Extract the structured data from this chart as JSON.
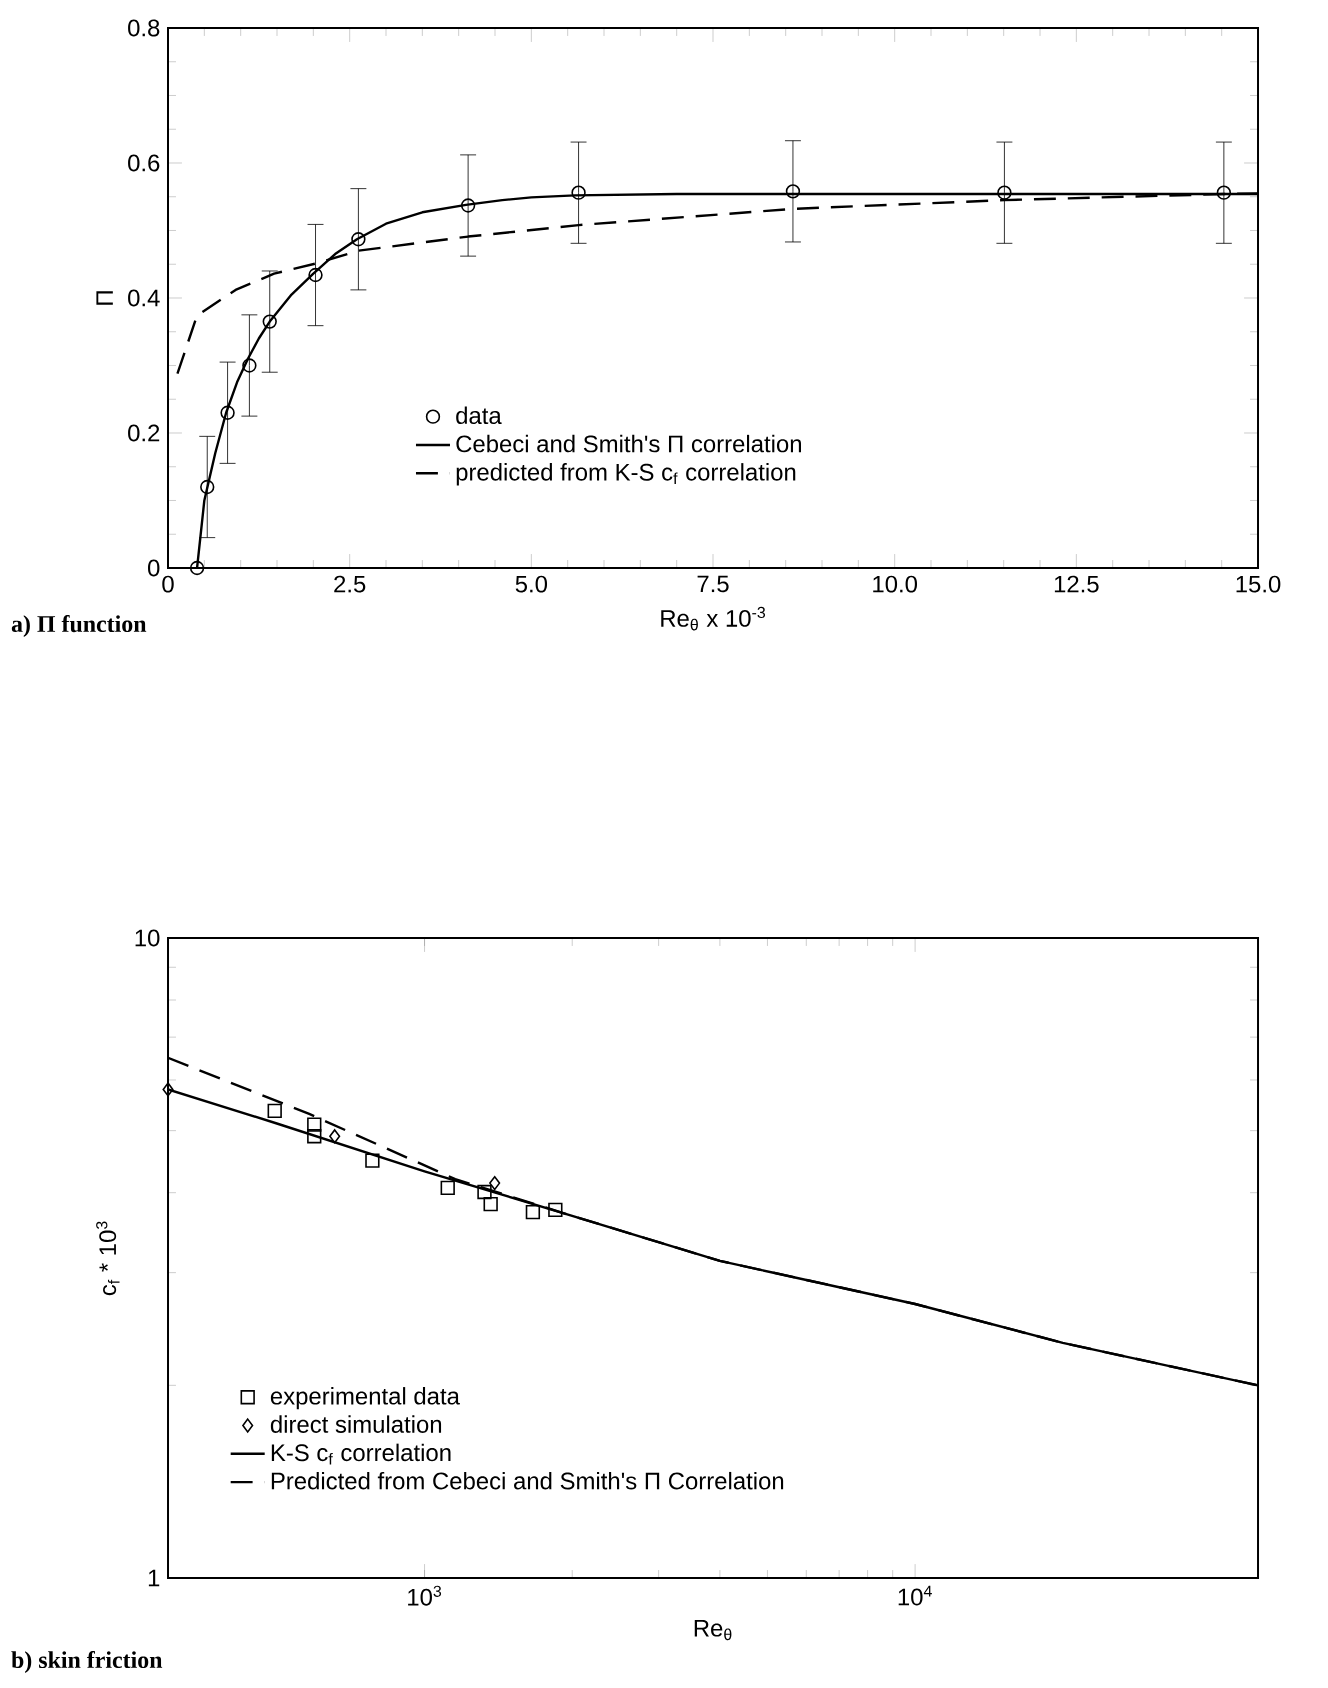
{
  "chart_data": [
    {
      "type": "line",
      "annotations": [
        "a) Π function"
      ],
      "xlabel": "Re$_{θ}$ x 10$^{-3}$",
      "ylabel": "Π",
      "xlim": [
        0,
        15
      ],
      "ylim": [
        0,
        0.8
      ],
      "xticks": [
        0,
        {
          "value": 2.5,
          "label": "2.5"
        },
        {
          "value": 5,
          "label": "5.0"
        },
        {
          "value": 7.5,
          "label": "7.5"
        },
        {
          "value": 10,
          "label": "10.0"
        },
        {
          "value": 12.5,
          "label": "12.5"
        },
        {
          "value": 15,
          "label": "15.0"
        }
      ],
      "yticks": [
        0,
        0.2,
        0.4,
        0.6,
        0.8
      ],
      "legend": "bottom",
      "grid": false,
      "series": [
        {
          "name": "data",
          "type": "scatter",
          "marker": "circle",
          "color": "#000000",
          "x": [
            0.4,
            0.54,
            0.82,
            1.12,
            1.4,
            2.03,
            2.62,
            4.13,
            5.65,
            8.6,
            11.51,
            14.53
          ],
          "values": [
            0,
            0.12,
            0.23,
            0.3,
            0.365,
            0.434,
            0.487,
            0.537,
            0.556,
            0.558,
            0.556,
            0.556
          ],
          "errors": [
            null,
            0.075,
            0.075,
            0.075,
            0.075,
            0.075,
            0.075,
            0.075,
            0.075,
            0.075,
            0.075,
            0.075
          ]
        },
        {
          "name": "Cebeci and Smith's Π correlation",
          "line_style": "solid",
          "color": "#000000",
          "x": [
            0.4,
            0.5,
            0.65,
            0.8,
            0.95,
            1.1,
            1.25,
            1.4,
            1.7,
            2.0,
            2.3,
            2.6,
            3.0,
            3.5,
            4.1,
            4.6,
            5.0,
            5.6,
            7.0,
            10.0,
            15.0
          ],
          "values": [
            0,
            0.1,
            0.17,
            0.23,
            0.275,
            0.31,
            0.34,
            0.365,
            0.405,
            0.436,
            0.465,
            0.487,
            0.51,
            0.527,
            0.538,
            0.545,
            0.549,
            0.552,
            0.554,
            0.554,
            0.554
          ]
        },
        {
          "name": "predicted from K-S c$_{f}$ correlation",
          "line_style": "dashed",
          "color": "#000000",
          "x": [
            0.13,
            0.4,
            0.93,
            1.46,
            2.03,
            2.62,
            4.13,
            5.65,
            8.6,
            11.51,
            14.53,
            15.0
          ],
          "values": [
            0.288,
            0.374,
            0.412,
            0.436,
            0.451,
            0.47,
            0.491,
            0.508,
            0.532,
            0.545,
            0.554,
            0.555
          ]
        }
      ]
    },
    {
      "type": "line",
      "annotations": [
        "b) skin friction"
      ],
      "xlabel": "Re$_{θ}$",
      "ylabel": "c$_{f}$ * 10$^{3}$",
      "log": "xy",
      "xlim": [
        300,
        50000
      ],
      "ylim": [
        1,
        10
      ],
      "xticks": [
        {
          "value": 1000,
          "label": "10$^{3}$"
        },
        {
          "value": 10000,
          "label": "10$^{4}$"
        }
      ],
      "yticks": [
        1,
        10
      ],
      "legend": "bottom left",
      "grid": false,
      "series": [
        {
          "name": "experimental data",
          "type": "scatter",
          "marker": "square",
          "color": "#000000",
          "x": [
            495,
            596,
            596,
            783,
            1115,
            1325,
            1364,
            1663,
            1848
          ],
          "values": [
            5.37,
            5.11,
            4.9,
            4.49,
            4.07,
            4.01,
            3.84,
            3.73,
            3.76
          ]
        },
        {
          "name": "direct simulation",
          "type": "scatter",
          "marker": "diamond",
          "color": "#000000",
          "x": [
            300,
            656,
            1390
          ],
          "values": [
            5.8,
            4.9,
            4.14
          ]
        },
        {
          "name": "K-S c$_{f}$ correlation",
          "line_style": "solid",
          "color": "#000000",
          "x": [
            300,
            500,
            1000,
            2000,
            4000,
            10000,
            20000,
            50000
          ],
          "values": [
            5.8,
            5.13,
            4.32,
            3.68,
            3.13,
            2.68,
            2.33,
            2.0
          ]
        },
        {
          "name": "Predicted from Cebeci and Smith's Π Correlation",
          "line_style": "dashed",
          "color": "#000000",
          "x": [
            300,
            582,
            1155,
            2000,
            4000,
            10000,
            20000,
            50000
          ],
          "values": [
            6.5,
            5.31,
            4.2,
            3.68,
            3.13,
            2.68,
            2.33,
            2.0
          ]
        }
      ]
    }
  ]
}
